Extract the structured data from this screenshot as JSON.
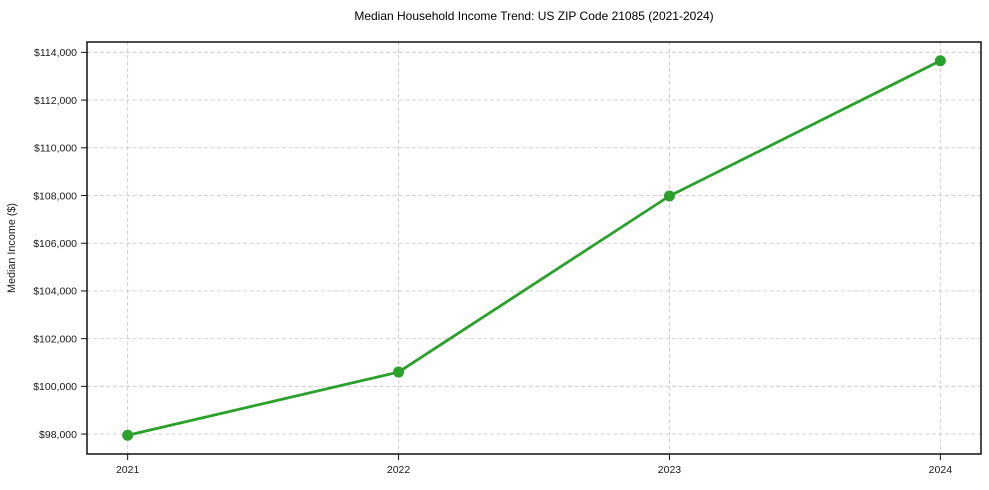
{
  "chart_data": {
    "type": "line",
    "title": "Median Household Income Trend: US ZIP Code 21085 (2021-2024)",
    "xlabel": "",
    "ylabel": "Median Income ($)",
    "x": [
      2021,
      2022,
      2023,
      2024
    ],
    "values": [
      97950,
      100600,
      107980,
      113650
    ],
    "xtick_values": [
      2021,
      2022,
      2023,
      2024
    ],
    "xtick_labels": [
      "2021",
      "2022",
      "2023",
      "2024"
    ],
    "ytick_values": [
      98000,
      100000,
      102000,
      104000,
      106000,
      108000,
      110000,
      112000,
      114000
    ],
    "ytick_labels": [
      "$98,000",
      "$100,000",
      "$102,000",
      "$104,000",
      "$106,000",
      "$108,000",
      "$110,000",
      "$112,000",
      "$114,000"
    ],
    "xlim": [
      2020.85,
      2024.15
    ],
    "ylim": [
      97165,
      114435
    ],
    "grid": true,
    "grid_style": "dashed",
    "legend": false,
    "line_color": "#2ca02c",
    "marker": "circle",
    "marker_color": "#2ca02c",
    "grid_color": "#cccccc",
    "axis_color": "#111111",
    "background_color": "#ffffff"
  }
}
